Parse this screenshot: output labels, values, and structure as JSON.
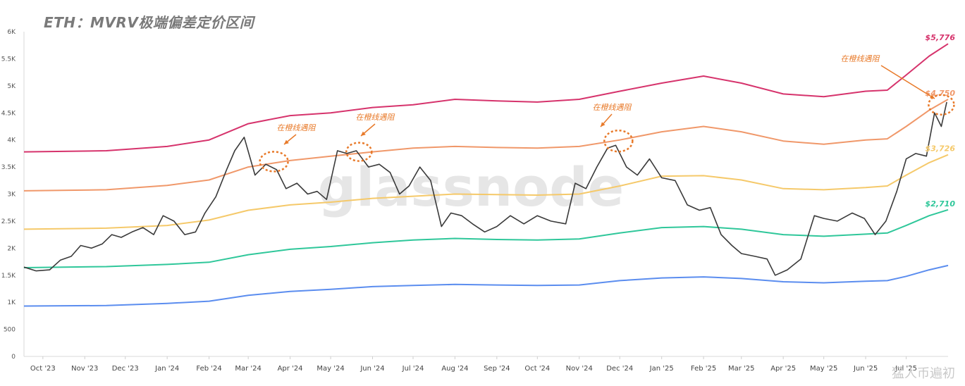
{
  "title": "ETH：MVRV极端偏差定价区间",
  "watermark_center": "glassnode",
  "watermark_corner": "猛人币遍初",
  "colors": {
    "price": "#3a3a3a",
    "band_5776": "#d6336c",
    "band_4750": "#f0986a",
    "band_3726": "#f5c96a",
    "band_2710": "#2fc79a",
    "band_low": "#5b8def",
    "annotation": "#e87a2a"
  },
  "annotations": {
    "text": "在橙线遇阻"
  },
  "chart_data": {
    "type": "line",
    "title": "ETH：MVRV极端偏差定价区间",
    "xlabel": "",
    "ylabel": "",
    "ylim": [
      0,
      6000
    ],
    "xlim": [
      "2023-10-01",
      "2025-08-15"
    ],
    "grid": false,
    "yticks": [
      0,
      500,
      1000,
      1500,
      2000,
      2500,
      3000,
      3500,
      4000,
      4500,
      5000,
      5500,
      6000
    ],
    "ytick_labels": [
      "0",
      "500",
      "1K",
      "1.5K",
      "2K",
      "2.5K",
      "3K",
      "3.5K",
      "4K",
      "4.5K",
      "5K",
      "5.5K",
      "6K"
    ],
    "xtick_labels": [
      "Oct '23",
      "Nov '23",
      "Dec '23",
      "Jan '24",
      "Feb '24",
      "Mar '24",
      "Apr '24",
      "May '24",
      "Jun '24",
      "Jul '24",
      "Aug '24",
      "Sep '24",
      "Oct '24",
      "Nov '24",
      "Dec '24",
      "Jan '25",
      "Feb '25",
      "Mar '25",
      "Apr '25",
      "May '25",
      "Jun '25",
      "Jul '25"
    ],
    "xtick_dates": [
      "2023-10-15",
      "2023-11-15",
      "2023-12-15",
      "2024-01-15",
      "2024-02-15",
      "2024-03-15",
      "2024-04-15",
      "2024-05-15",
      "2024-06-15",
      "2024-07-15",
      "2024-08-15",
      "2024-09-15",
      "2024-10-15",
      "2024-11-15",
      "2024-12-15",
      "2025-01-15",
      "2025-02-15",
      "2025-03-15",
      "2025-04-15",
      "2025-05-15",
      "2025-06-15",
      "2025-07-15"
    ],
    "series": [
      {
        "key": "band_5776",
        "end_label": "$5,776",
        "x": [
          "2023-10-01",
          "2023-12-01",
          "2024-01-15",
          "2024-02-15",
          "2024-03-15",
          "2024-04-15",
          "2024-05-15",
          "2024-06-15",
          "2024-07-15",
          "2024-08-15",
          "2024-09-15",
          "2024-10-15",
          "2024-11-15",
          "2024-12-15",
          "2025-01-15",
          "2025-02-15",
          "2025-03-15",
          "2025-04-15",
          "2025-05-15",
          "2025-06-15",
          "2025-07-01",
          "2025-07-15",
          "2025-08-01",
          "2025-08-15"
        ],
        "values": [
          3780,
          3800,
          3880,
          4000,
          4300,
          4450,
          4500,
          4600,
          4650,
          4750,
          4720,
          4700,
          4750,
          4900,
          5050,
          5180,
          5050,
          4850,
          4800,
          4900,
          4920,
          5200,
          5550,
          5776
        ]
      },
      {
        "key": "band_4750",
        "end_label": "$4,750",
        "x": [
          "2023-10-01",
          "2023-12-01",
          "2024-01-15",
          "2024-02-15",
          "2024-03-15",
          "2024-04-15",
          "2024-05-15",
          "2024-06-15",
          "2024-07-15",
          "2024-08-15",
          "2024-09-15",
          "2024-10-15",
          "2024-11-15",
          "2024-12-15",
          "2025-01-15",
          "2025-02-15",
          "2025-03-15",
          "2025-04-15",
          "2025-05-15",
          "2025-06-15",
          "2025-07-01",
          "2025-07-15",
          "2025-08-01",
          "2025-08-15"
        ],
        "values": [
          3060,
          3080,
          3160,
          3260,
          3500,
          3620,
          3700,
          3780,
          3850,
          3880,
          3860,
          3850,
          3880,
          4000,
          4150,
          4250,
          4150,
          3980,
          3920,
          4000,
          4020,
          4250,
          4550,
          4750
        ]
      },
      {
        "key": "band_3726",
        "end_label": "$3,726",
        "x": [
          "2023-10-01",
          "2023-12-01",
          "2024-01-15",
          "2024-02-15",
          "2024-03-15",
          "2024-04-15",
          "2024-05-15",
          "2024-06-15",
          "2024-07-15",
          "2024-08-15",
          "2024-09-15",
          "2024-10-15",
          "2024-11-15",
          "2024-12-15",
          "2025-01-15",
          "2025-02-15",
          "2025-03-15",
          "2025-04-15",
          "2025-05-15",
          "2025-06-15",
          "2025-07-01",
          "2025-07-15",
          "2025-08-01",
          "2025-08-15"
        ],
        "values": [
          2350,
          2370,
          2420,
          2520,
          2700,
          2800,
          2850,
          2920,
          2960,
          3000,
          2990,
          2980,
          3000,
          3150,
          3330,
          3340,
          3260,
          3100,
          3080,
          3120,
          3150,
          3350,
          3580,
          3726
        ]
      },
      {
        "key": "band_2710",
        "end_label": "$2,710",
        "x": [
          "2023-10-01",
          "2023-12-01",
          "2024-01-15",
          "2024-02-15",
          "2024-03-15",
          "2024-04-15",
          "2024-05-15",
          "2024-06-15",
          "2024-07-15",
          "2024-08-15",
          "2024-09-15",
          "2024-10-15",
          "2024-11-15",
          "2024-12-15",
          "2025-01-15",
          "2025-02-15",
          "2025-03-15",
          "2025-04-15",
          "2025-05-15",
          "2025-06-15",
          "2025-07-01",
          "2025-07-15",
          "2025-08-01",
          "2025-08-15"
        ],
        "values": [
          1640,
          1660,
          1700,
          1740,
          1880,
          1980,
          2030,
          2100,
          2150,
          2180,
          2160,
          2150,
          2170,
          2280,
          2380,
          2400,
          2350,
          2250,
          2220,
          2260,
          2280,
          2420,
          2600,
          2710
        ]
      },
      {
        "key": "band_low",
        "end_label": "",
        "x": [
          "2023-10-01",
          "2023-12-01",
          "2024-01-15",
          "2024-02-15",
          "2024-03-15",
          "2024-04-15",
          "2024-05-15",
          "2024-06-15",
          "2024-07-15",
          "2024-08-15",
          "2024-09-15",
          "2024-10-15",
          "2024-11-15",
          "2024-12-15",
          "2025-01-15",
          "2025-02-15",
          "2025-03-15",
          "2025-04-15",
          "2025-05-15",
          "2025-06-15",
          "2025-07-01",
          "2025-07-15",
          "2025-08-01",
          "2025-08-15"
        ],
        "values": [
          930,
          940,
          980,
          1020,
          1130,
          1200,
          1240,
          1290,
          1310,
          1330,
          1320,
          1310,
          1320,
          1400,
          1450,
          1470,
          1440,
          1380,
          1360,
          1390,
          1400,
          1480,
          1600,
          1680
        ]
      },
      {
        "key": "price",
        "end_label": "",
        "x": [
          "2023-10-01",
          "2023-10-10",
          "2023-10-20",
          "2023-10-28",
          "2023-11-05",
          "2023-11-12",
          "2023-11-20",
          "2023-11-28",
          "2023-12-05",
          "2023-12-12",
          "2023-12-20",
          "2023-12-28",
          "2024-01-05",
          "2024-01-12",
          "2024-01-20",
          "2024-01-28",
          "2024-02-05",
          "2024-02-12",
          "2024-02-20",
          "2024-02-28",
          "2024-03-05",
          "2024-03-12",
          "2024-03-20",
          "2024-03-28",
          "2024-04-05",
          "2024-04-12",
          "2024-04-20",
          "2024-04-28",
          "2024-05-05",
          "2024-05-12",
          "2024-05-20",
          "2024-05-27",
          "2024-06-03",
          "2024-06-12",
          "2024-06-20",
          "2024-06-28",
          "2024-07-05",
          "2024-07-12",
          "2024-07-20",
          "2024-07-28",
          "2024-08-05",
          "2024-08-12",
          "2024-08-20",
          "2024-08-28",
          "2024-09-06",
          "2024-09-15",
          "2024-09-25",
          "2024-10-05",
          "2024-10-15",
          "2024-10-25",
          "2024-11-05",
          "2024-11-12",
          "2024-11-20",
          "2024-11-28",
          "2024-12-06",
          "2024-12-12",
          "2024-12-20",
          "2024-12-28",
          "2025-01-06",
          "2025-01-15",
          "2025-01-25",
          "2025-02-03",
          "2025-02-12",
          "2025-02-20",
          "2025-02-28",
          "2025-03-08",
          "2025-03-15",
          "2025-03-25",
          "2025-04-03",
          "2025-04-09",
          "2025-04-18",
          "2025-04-28",
          "2025-05-08",
          "2025-05-15",
          "2025-05-25",
          "2025-06-05",
          "2025-06-14",
          "2025-06-22",
          "2025-06-30",
          "2025-07-08",
          "2025-07-15",
          "2025-07-22",
          "2025-07-30",
          "2025-08-05",
          "2025-08-10",
          "2025-08-14"
        ],
        "values": [
          1650,
          1580,
          1600,
          1780,
          1850,
          2050,
          2000,
          2080,
          2250,
          2200,
          2300,
          2380,
          2250,
          2600,
          2500,
          2250,
          2300,
          2650,
          2950,
          3450,
          3800,
          4050,
          3350,
          3550,
          3450,
          3100,
          3200,
          3000,
          3050,
          2900,
          3800,
          3750,
          3800,
          3500,
          3550,
          3400,
          3000,
          3150,
          3500,
          3250,
          2400,
          2650,
          2600,
          2450,
          2300,
          2400,
          2600,
          2450,
          2600,
          2500,
          2450,
          3200,
          3100,
          3500,
          3850,
          3900,
          3500,
          3350,
          3650,
          3300,
          3250,
          2800,
          2700,
          2750,
          2250,
          2050,
          1900,
          1850,
          1800,
          1500,
          1600,
          1800,
          2600,
          2550,
          2500,
          2650,
          2550,
          2250,
          2500,
          3050,
          3650,
          3750,
          3700,
          4500,
          4250,
          4700
        ]
      }
    ]
  }
}
